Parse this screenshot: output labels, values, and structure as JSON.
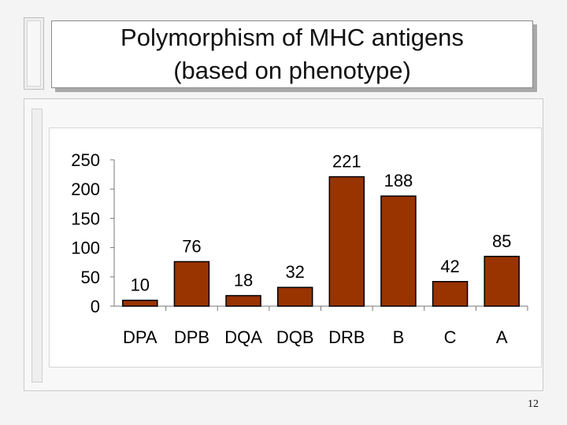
{
  "slide": {
    "title_line1": "Polymorphism of MHC antigens",
    "title_line2": "(based on phenotype)",
    "page_number": "12"
  },
  "chart_data": {
    "type": "bar",
    "title": "Polymorphism of MHC antigens (based on phenotype)",
    "categories": [
      "DPA",
      "DPB",
      "DQA",
      "DQB",
      "DRB",
      "B",
      "C",
      "A"
    ],
    "values": [
      10,
      76,
      18,
      32,
      221,
      188,
      42,
      85
    ],
    "data_labels": [
      "10",
      "76",
      "18",
      "32",
      "221",
      "188",
      "42",
      "85"
    ],
    "yticks": [
      "0",
      "50",
      "100",
      "150",
      "200",
      "250"
    ],
    "ylim": [
      0,
      250
    ],
    "xlabel": "",
    "ylabel": "",
    "grid": false,
    "legend": "none",
    "bar_color": "#993300"
  }
}
